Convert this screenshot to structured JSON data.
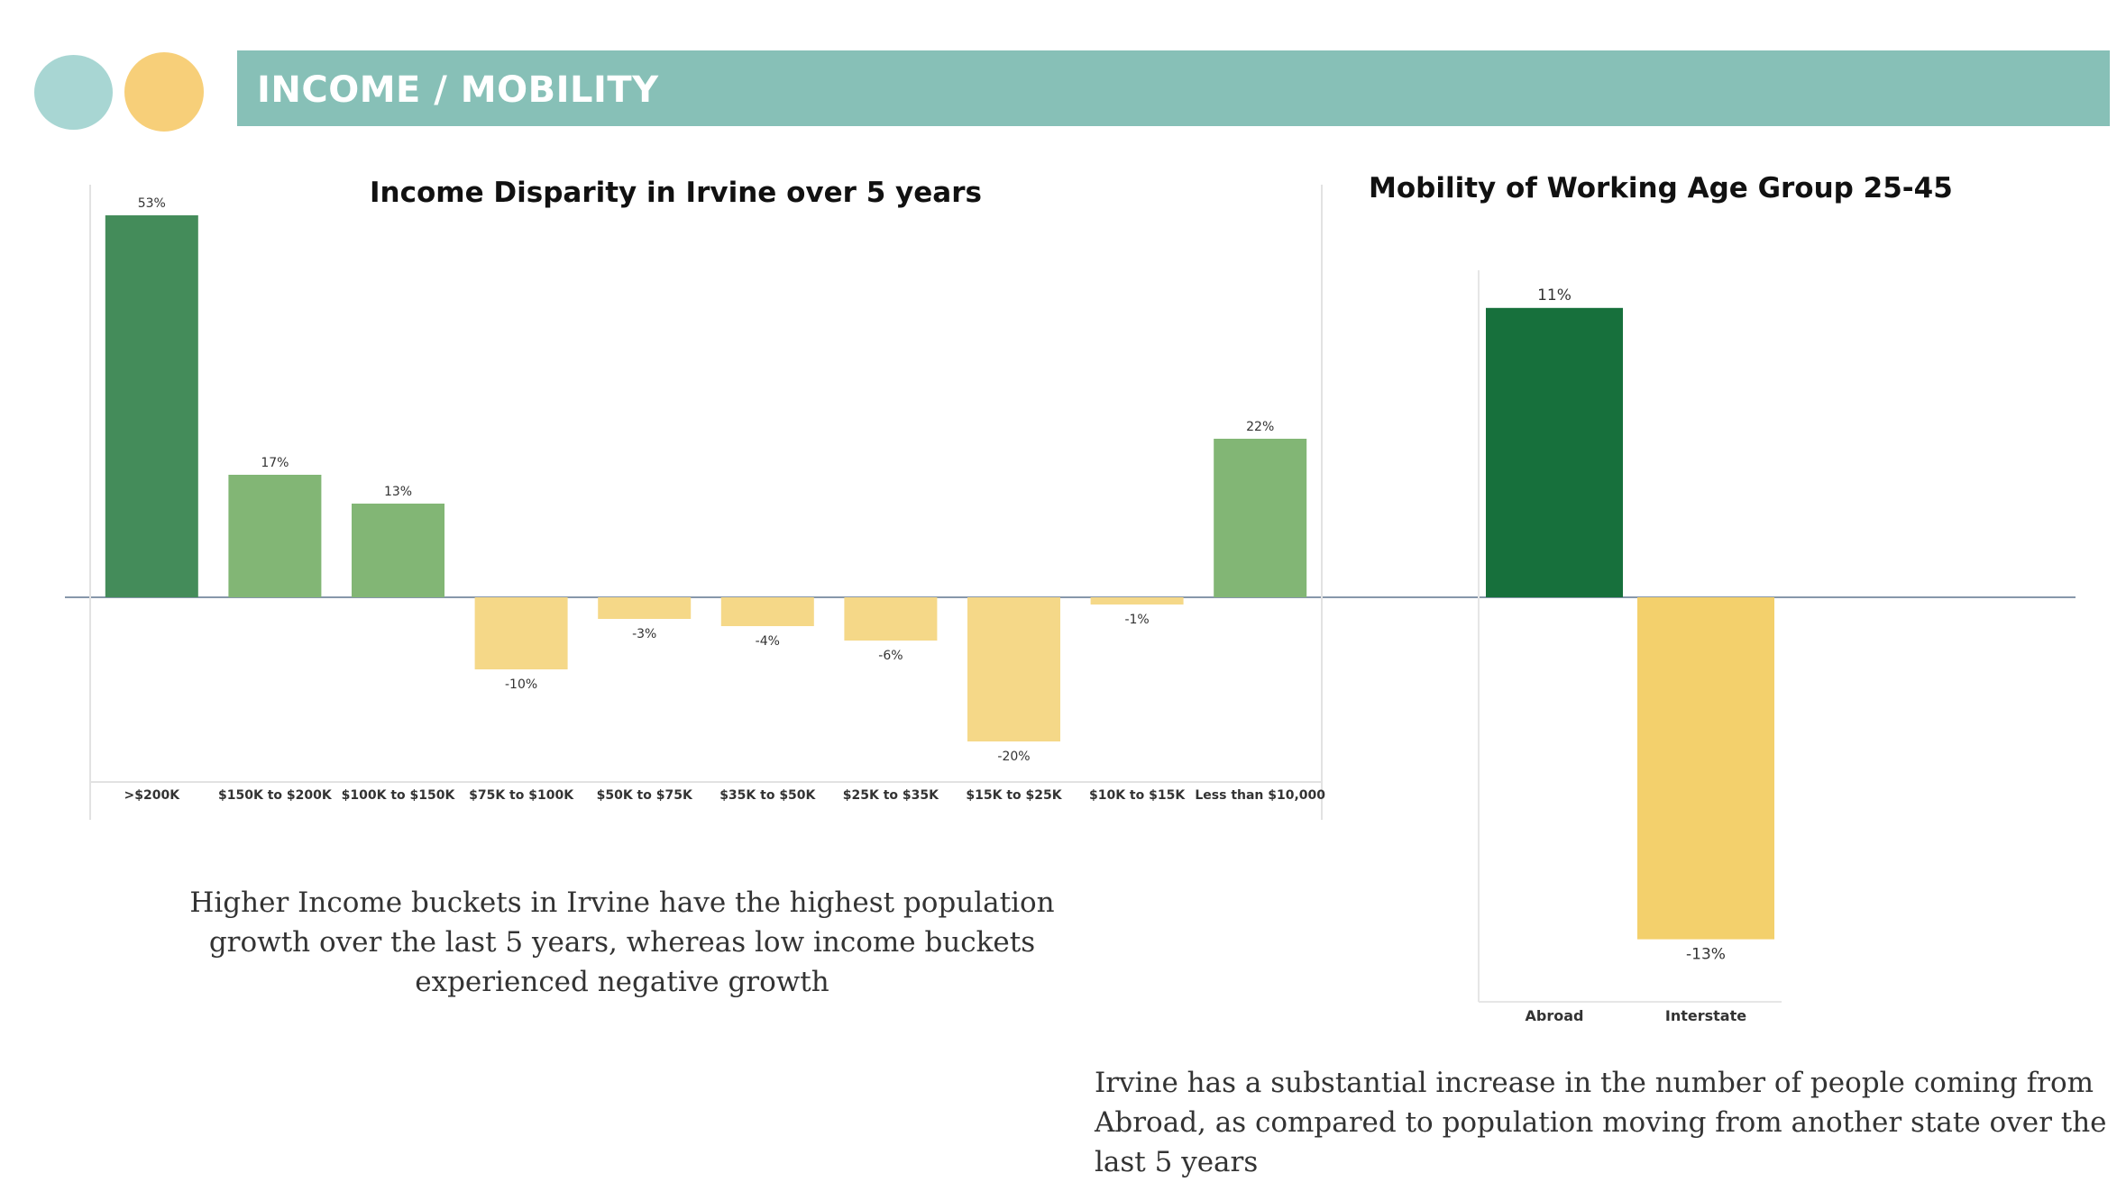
{
  "header": {
    "title": "INCOME / MOBILITY",
    "colors": {
      "banner": "#87c0b7",
      "circle_left": "#a8d6d3",
      "circle_right": "#f7cf79"
    }
  },
  "income_caption": "Higher Income buckets in Irvine have the highest population growth over the last 5 years, whereas low income buckets experienced negative growth",
  "mobility_caption": "Irvine has a substantial increase in the number of people coming from Abroad, as compared to population moving from another state over the last 5 years",
  "chart_data": [
    {
      "type": "bar",
      "title": "Income Disparity in Irvine over 5 years",
      "categories": [
        ">$200K",
        "$150K to $200K",
        "$100K to $150K",
        "$75K to $100K",
        "$50K to $75K",
        "$35K to $50K",
        "$25K to $35K",
        "$15K to $25K",
        "$10K to $15K",
        "Less than $10,000"
      ],
      "values": [
        53,
        17,
        13,
        -10,
        -3,
        -4,
        -6,
        -20,
        -1,
        22
      ],
      "labels": [
        "53%",
        "17%",
        "13%",
        "-10%",
        "-3%",
        "-4%",
        "-6%",
        "-20%",
        "-1%",
        "22%"
      ],
      "unit": "%",
      "colors": [
        "#448c5a",
        "#82b675",
        "#82b675",
        "#f5d888",
        "#f5d888",
        "#f5d888",
        "#f5d888",
        "#f5d888",
        "#f5d888",
        "#82b675"
      ],
      "grid": false
    },
    {
      "type": "bar",
      "title": "Mobility of Working Age Group 25-45",
      "categories": [
        "Abroad",
        "Interstate"
      ],
      "values": [
        11,
        -13
      ],
      "labels": [
        "11%",
        "-13%"
      ],
      "unit": "%",
      "colors": [
        "#17703c",
        "#f3d06c"
      ],
      "grid": false
    }
  ]
}
